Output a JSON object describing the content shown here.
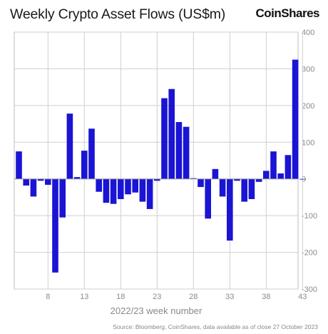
{
  "header": {
    "title": "Weekly Crypto Asset Flows (US$m)",
    "brand": "CoinShares"
  },
  "footer": {
    "source": "Source: Bloomberg, CoinShares, data available as of close 27 October 2023"
  },
  "colors": {
    "bar": "#1a14d4",
    "grid": "#cfcfcf",
    "axis_text": "#8a8a8a"
  },
  "chart_data": {
    "type": "bar",
    "title": "Weekly Crypto Asset Flows (US$m)",
    "xlabel": "2022/23 week number",
    "ylabel": "",
    "ylim": [
      -300,
      400
    ],
    "yticks": [
      400,
      300,
      200,
      100,
      0,
      -100,
      -200,
      -300
    ],
    "y_axis_side": "right",
    "x": [
      4,
      5,
      6,
      7,
      8,
      9,
      10,
      11,
      12,
      13,
      14,
      15,
      16,
      17,
      18,
      19,
      20,
      21,
      22,
      23,
      24,
      25,
      26,
      27,
      28,
      29,
      30,
      31,
      32,
      33,
      34,
      35,
      36,
      37,
      38,
      39,
      40,
      41,
      42,
      43
    ],
    "xtick_labels": [
      "8",
      "13",
      "18",
      "23",
      "28",
      "33",
      "38",
      "43"
    ],
    "xtick_weeks": [
      8,
      13,
      18,
      23,
      28,
      33,
      38,
      43
    ],
    "values": [
      75,
      -18,
      -48,
      -5,
      -16,
      -255,
      -105,
      178,
      5,
      77,
      137,
      -35,
      -65,
      -68,
      -55,
      -42,
      -37,
      -62,
      -82,
      -5,
      220,
      245,
      155,
      142,
      2,
      -22,
      -108,
      27,
      -48,
      -168,
      -5,
      -62,
      -55,
      -8,
      22,
      75,
      15,
      65,
      325,
      0
    ],
    "grid": true,
    "legend": "none"
  }
}
